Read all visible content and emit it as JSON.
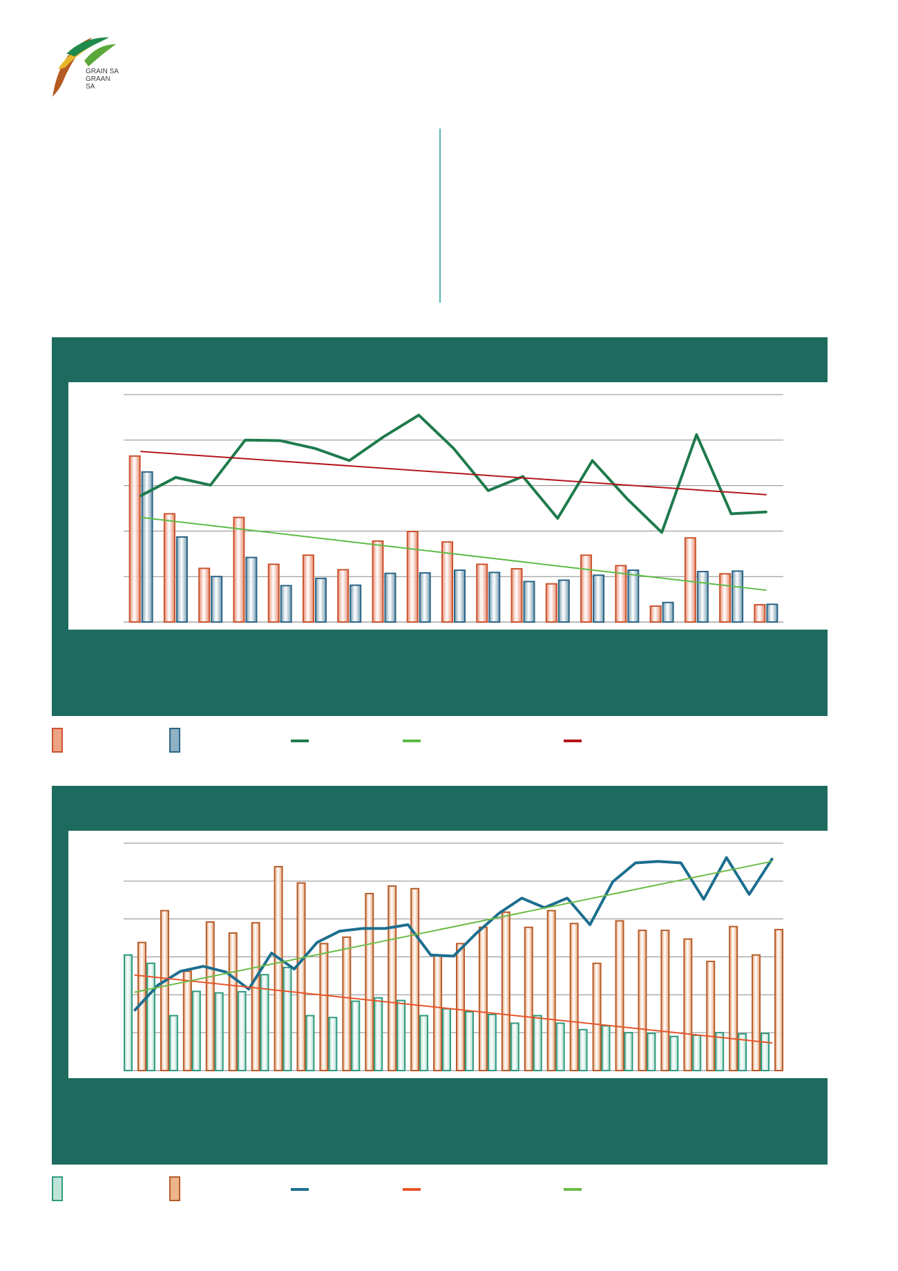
{
  "logo": {
    "line1": "GRAIN SA",
    "line2": "GRAAN SA"
  },
  "chart_data": [
    {
      "type": "bar",
      "y_range": [
        0,
        5
      ],
      "grid": true,
      "series": [
        {
          "kind": "bar",
          "color": "#e8866a",
          "edge": "#c9542f",
          "values": [
            3.65,
            2.38,
            1.18,
            2.3,
            1.27,
            1.47,
            1.15,
            1.78,
            1.99,
            1.76,
            1.27,
            1.17,
            0.84,
            1.47,
            1.24,
            0.35,
            1.85,
            1.06,
            0.38
          ]
        },
        {
          "kind": "bar",
          "color": "#6d97ad",
          "edge": "#2c6585",
          "values": [
            3.3,
            1.87,
            1.0,
            1.42,
            0.8,
            0.96,
            0.81,
            1.07,
            1.08,
            1.14,
            1.09,
            0.89,
            0.92,
            1.03,
            1.14,
            0.43,
            1.11,
            1.12,
            0.39
          ]
        },
        {
          "kind": "line",
          "color": "#1e7a4c",
          "width": 4,
          "values": [
            2.78,
            3.18,
            3.01,
            4.0,
            3.99,
            3.82,
            3.55,
            4.08,
            4.55,
            3.82,
            2.89,
            3.2,
            2.28,
            3.55,
            2.71,
            1.97,
            4.12,
            2.38,
            2.42
          ]
        },
        {
          "kind": "line",
          "color": "#5dbb46",
          "width": 2,
          "values_endpoints": [
            2.3,
            0.7
          ]
        },
        {
          "kind": "line",
          "color": "#b3161c",
          "width": 2,
          "values_endpoints": [
            3.75,
            2.8
          ]
        }
      ]
    },
    {
      "type": "bar",
      "y_range": [
        0,
        6
      ],
      "grid": true,
      "series": [
        {
          "kind": "bar",
          "color": "#a7d8c7",
          "edge": "#2e9a7f",
          "values": [
            3.05,
            2.83,
            1.45,
            2.09,
            2.05,
            2.08,
            2.53,
            2.72,
            1.45,
            1.4,
            1.83,
            1.92,
            1.85,
            1.45,
            1.63,
            1.55,
            1.48,
            1.25,
            1.45,
            1.25,
            1.08,
            1.18,
            1.0,
            0.98,
            0.9,
            0.93,
            1.0,
            0.97,
            0.98
          ]
        },
        {
          "kind": "bar",
          "color": "#e5a070",
          "edge": "#b75c2a",
          "values": [
            3.38,
            4.22,
            2.62,
            3.92,
            3.63,
            3.9,
            5.38,
            4.95,
            3.35,
            3.52,
            4.67,
            4.87,
            4.8,
            3.05,
            3.35,
            3.78,
            4.18,
            3.78,
            4.22,
            3.88,
            2.83,
            3.95,
            3.7,
            3.7,
            3.47,
            2.88,
            3.8,
            3.05,
            3.72
          ]
        },
        {
          "kind": "line",
          "color": "#1c6e8e",
          "width": 4,
          "values": [
            1.6,
            2.25,
            2.62,
            2.75,
            2.6,
            2.15,
            3.1,
            2.68,
            3.38,
            3.68,
            3.75,
            3.75,
            3.85,
            3.05,
            3.02,
            3.62,
            4.15,
            4.55,
            4.3,
            4.55,
            3.85,
            4.98,
            5.48,
            5.52,
            5.48,
            4.52,
            5.62,
            4.65,
            5.58
          ]
        },
        {
          "kind": "line",
          "color": "#e8542a",
          "width": 2,
          "values_endpoints": [
            2.52,
            0.73
          ]
        },
        {
          "kind": "line",
          "color": "#6cbb46",
          "width": 2,
          "values_endpoints": [
            2.07,
            5.52
          ]
        }
      ]
    }
  ]
}
